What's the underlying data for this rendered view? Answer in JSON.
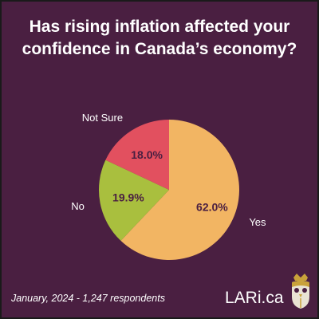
{
  "title_lines": [
    "Has rising inflation affected your",
    "confidence in Canada’s economy?"
  ],
  "footnote": "January, 2024 - 1,247 respondents",
  "brand": "LARi.ca",
  "colors": {
    "background": "#4a1f41",
    "yes": "#f2b563",
    "no": "#a9bf3e",
    "not_sure": "#e2505f"
  },
  "chart_data": {
    "type": "pie",
    "title": "Has rising inflation affected your confidence in Canada’s economy?",
    "slices": [
      {
        "label": "Yes",
        "value": 62.0,
        "data_label": "62.0%",
        "color": "#f2b563"
      },
      {
        "label": "No",
        "value": 19.9,
        "data_label": "19.9%",
        "color": "#a9bf3e"
      },
      {
        "label": "Not Sure",
        "value": 18.0,
        "data_label": "18.0%",
        "color": "#e2505f"
      }
    ]
  }
}
